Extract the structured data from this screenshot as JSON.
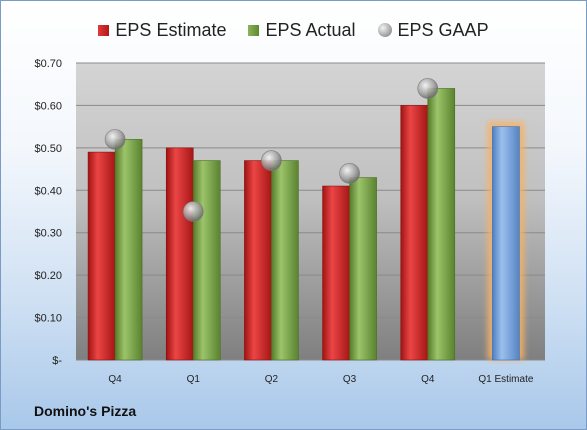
{
  "company": "Domino's Pizza",
  "chart_data": {
    "type": "bar",
    "categories": [
      "Q4",
      "Q1",
      "Q2",
      "Q3",
      "Q4",
      "Q1 Estimate"
    ],
    "series": [
      {
        "name": "EPS Estimate",
        "color": "#c62828",
        "values": [
          0.49,
          0.5,
          0.47,
          0.41,
          0.6,
          null
        ]
      },
      {
        "name": "EPS Actual",
        "color": "#6f9a3e",
        "values": [
          0.52,
          0.47,
          0.47,
          0.43,
          0.64,
          null
        ]
      },
      {
        "name": "EPS GAAP",
        "color": "#a0a0a0",
        "marker": "circle",
        "values": [
          0.52,
          0.35,
          0.47,
          0.44,
          0.64,
          null
        ]
      }
    ],
    "forecast": {
      "category": "Q1 Estimate",
      "value": 0.55,
      "color": "#6f9bd6",
      "glow": "#f4b26a"
    },
    "yticks": [
      "$-",
      "$0.10",
      "$0.20",
      "$0.30",
      "$0.40",
      "$0.50",
      "$0.60",
      "$0.70"
    ],
    "ylim": [
      0,
      0.7
    ],
    "grid": true,
    "legend": "top"
  }
}
